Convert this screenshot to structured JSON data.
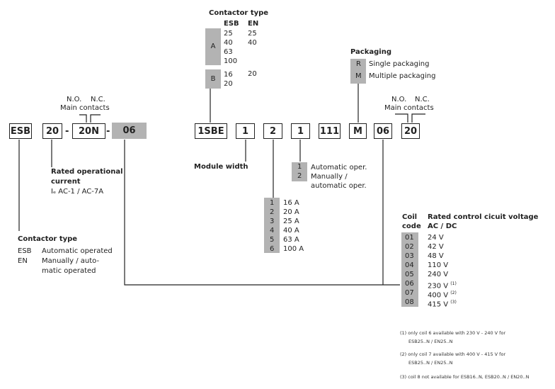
{
  "code_left": {
    "prefix": "ESB",
    "rating": "20",
    "contacts": "20N",
    "coil": "06",
    "sep": "-"
  },
  "code_right": {
    "prefix": "1SBE",
    "module": "1",
    "current": "2",
    "operation": "1",
    "fixed": "111",
    "packaging": "M",
    "coil": "06",
    "contacts": "20"
  },
  "main_contacts": {
    "no": "N.O.",
    "nc": "N.C.",
    "label": "Main contacts"
  },
  "contactor_type_top": {
    "title": "Contactor type",
    "col_esb": "ESB",
    "col_en": "EN",
    "groups": [
      {
        "code": "A",
        "esb": [
          "25",
          "40",
          "63",
          "100"
        ],
        "en": [
          "25",
          "40"
        ]
      },
      {
        "code": "B",
        "esb": [
          "16",
          "20"
        ],
        "en": [
          "20"
        ]
      }
    ]
  },
  "packaging": {
    "title": "Packaging",
    "items": [
      {
        "code": "R",
        "label": "Single packaging"
      },
      {
        "code": "M",
        "label": "Multiple packaging"
      }
    ]
  },
  "rated_current": {
    "title_line1": "Rated operational",
    "title_line2": "current",
    "sub": "Iₑ AC-1 / AC-7A"
  },
  "module_width": "Module width",
  "operation": {
    "items": [
      {
        "code": "1",
        "label": "Automatic oper."
      },
      {
        "code": "2",
        "label": "Manually /",
        "label2": "automatic oper."
      }
    ]
  },
  "currents": [
    {
      "code": "1",
      "label": "16 A"
    },
    {
      "code": "2",
      "label": "20 A"
    },
    {
      "code": "3",
      "label": "25 A"
    },
    {
      "code": "4",
      "label": "40 A"
    },
    {
      "code": "5",
      "label": "63 A"
    },
    {
      "code": "6",
      "label": "100 A"
    }
  ],
  "contactor_type_bottom": {
    "title": "Contactor type",
    "items": [
      {
        "code": "ESB",
        "label": "Automatic operated"
      },
      {
        "code": "EN",
        "label": "Manually / auto-",
        "label2": "matic operated"
      }
    ]
  },
  "coil": {
    "h1a": "Coil",
    "h1b": "code",
    "h2a": "Rated control cicuit voltage",
    "h2b": "AC / DC",
    "items": [
      {
        "code": "01",
        "v": "24 V",
        "n": ""
      },
      {
        "code": "02",
        "v": "42 V",
        "n": ""
      },
      {
        "code": "03",
        "v": "48 V",
        "n": ""
      },
      {
        "code": "04",
        "v": "110 V",
        "n": ""
      },
      {
        "code": "05",
        "v": "240 V",
        "n": ""
      },
      {
        "code": "06",
        "v": "230 V",
        "n": "(1)"
      },
      {
        "code": "07",
        "v": "400 V",
        "n": "(2)"
      },
      {
        "code": "08",
        "v": "415 V",
        "n": "(3)"
      }
    ]
  },
  "footnotes": [
    {
      "mark": "(1)",
      "l1": "only coil 6 available with 230 V - 240 V for",
      "l2": "ESB25..N / EN25..N"
    },
    {
      "mark": "(2)",
      "l1": "only coil 7 available with 400 V - 415 V for",
      "l2": "ESB25..N / EN25..N"
    },
    {
      "mark": "(3)",
      "l1": "coil 8 not available for ESB16..N, ESB20..N / EN20..N",
      "l2": ""
    }
  ],
  "colors": {
    "gray": "#b3b3b3",
    "line": "#222222"
  }
}
